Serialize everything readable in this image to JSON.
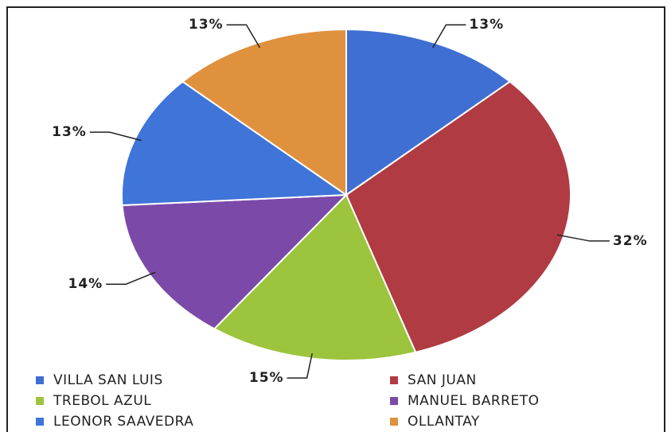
{
  "chart_data": {
    "type": "pie",
    "categories": [
      "VILLA SAN LUIS",
      "SAN JUAN",
      "TREBOL AZUL",
      "MANUEL BARRETO",
      "LEONOR SAAVEDRA",
      "OLLANTAY"
    ],
    "values": [
      13,
      32,
      15,
      14,
      13,
      13
    ],
    "value_labels": [
      "13%",
      "32%",
      "15%",
      "14%",
      "13%",
      "13%"
    ],
    "colors": [
      "#3f6fd2",
      "#b03b42",
      "#9cc43c",
      "#7b4aa8",
      "#3f74d8",
      "#e0913e"
    ]
  }
}
